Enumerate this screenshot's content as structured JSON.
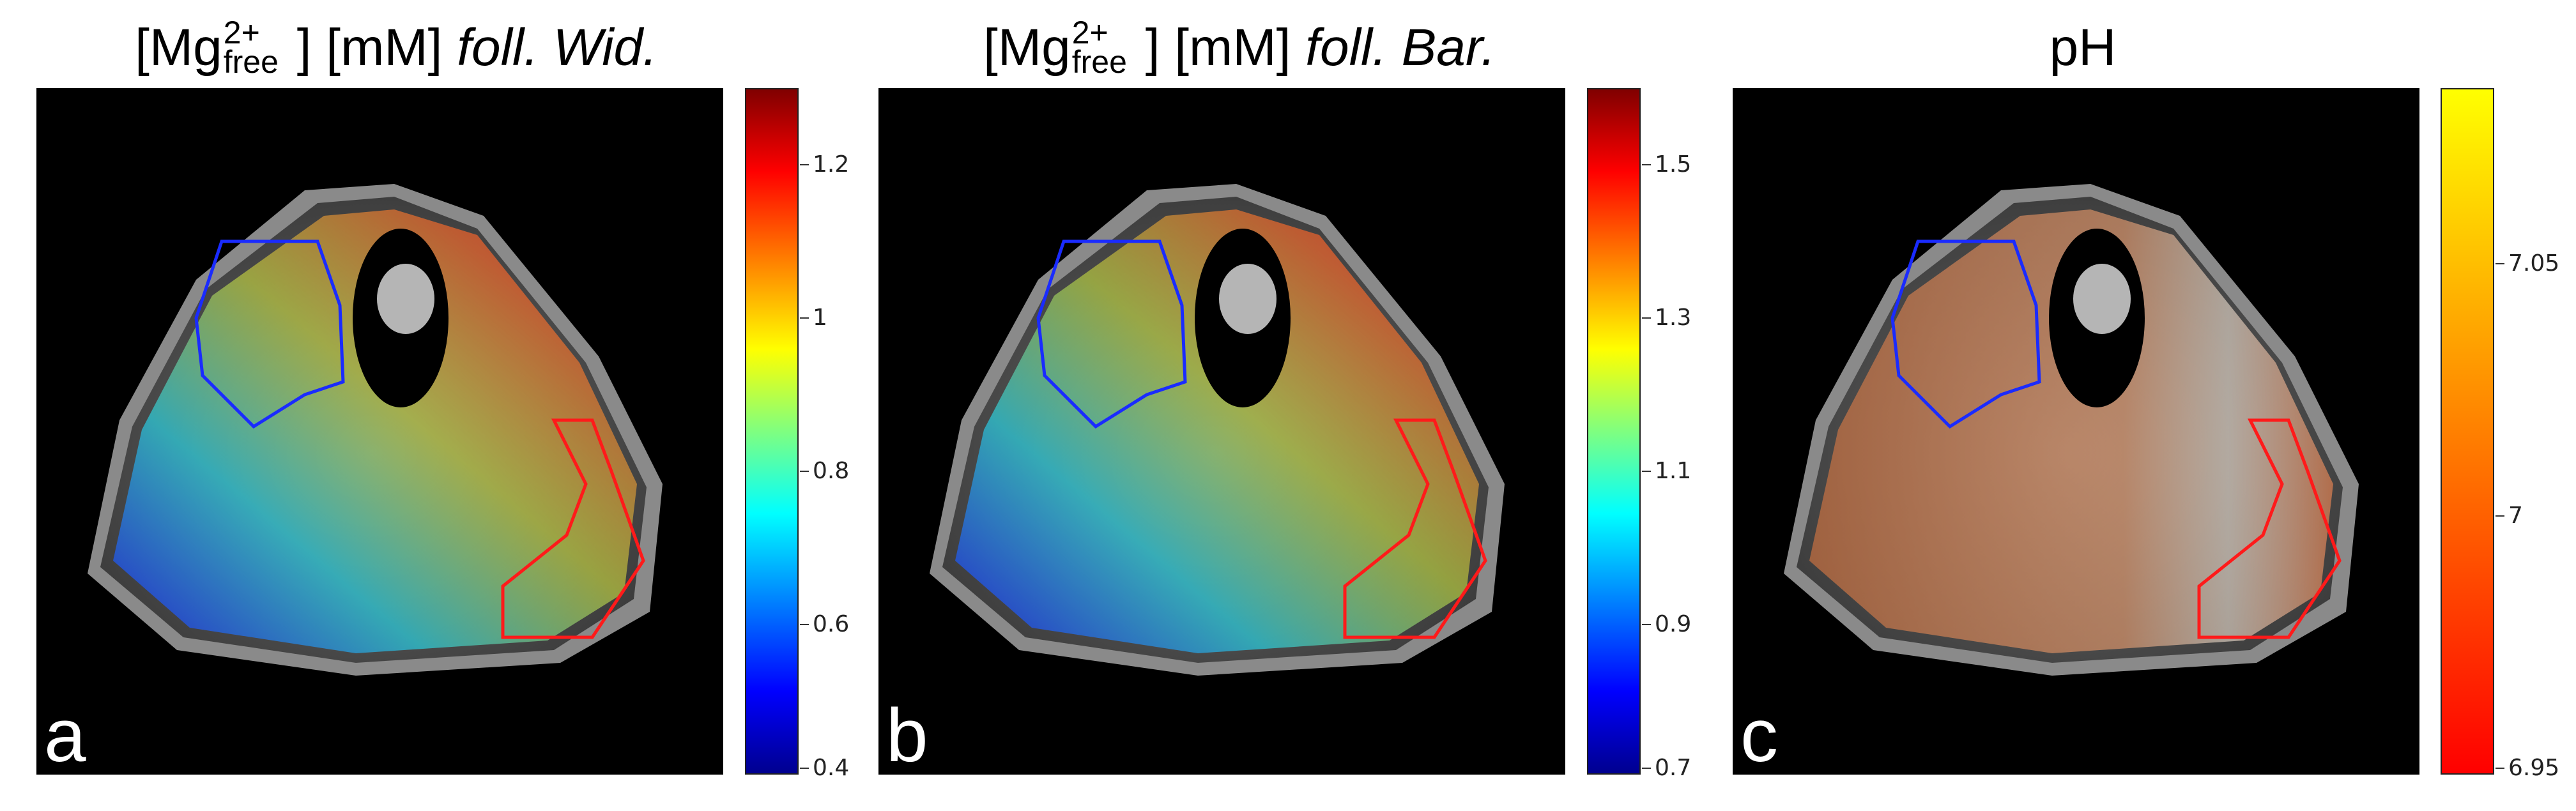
{
  "panels": [
    {
      "id": "a",
      "title_prefix": "[Mg",
      "title_sup": "2+",
      "title_sub": "free",
      "title_mid": " ] [mM] ",
      "title_italic": "foll. Wid.",
      "letter": "a",
      "colormap": "jet",
      "colorbar_ticks": [
        "1.2",
        "1",
        "0.8",
        "0.6",
        "0.4"
      ],
      "colorbar_range": [
        0.4,
        1.3
      ]
    },
    {
      "id": "b",
      "title_prefix": "[Mg",
      "title_sup": "2+",
      "title_sub": "free",
      "title_mid": " ] [mM] ",
      "title_italic": "foll. Bar.",
      "letter": "b",
      "colormap": "jet",
      "colorbar_ticks": [
        "1.5",
        "1.3",
        "1.1",
        "0.9",
        "0.7"
      ],
      "colorbar_range": [
        0.7,
        1.6
      ]
    },
    {
      "id": "c",
      "title_plain": "pH",
      "letter": "c",
      "colormap": "autumn",
      "colorbar_ticks": [
        "7.05",
        "7",
        "6.95"
      ],
      "colorbar_range": [
        6.95,
        7.09
      ]
    }
  ],
  "colors": {
    "roi_blue": "#1a2bff",
    "roi_red": "#ff1a1a",
    "background": "#000000"
  }
}
